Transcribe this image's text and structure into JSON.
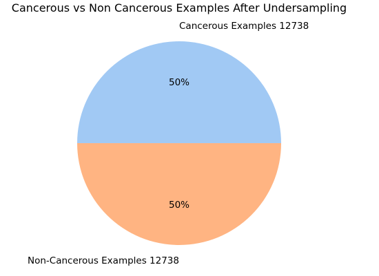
{
  "chart_data": {
    "type": "pie",
    "title": "Cancerous vs Non Cancerous Examples After Undersampling",
    "slices": [
      {
        "label": "Cancerous Examples 12738",
        "value": 12738,
        "percent_label": "50%",
        "color": "#a1c9f4"
      },
      {
        "label": "Non-Cancerous Examples 12738",
        "value": 12738,
        "percent_label": "50%",
        "color": "#ffb482"
      }
    ],
    "legend": "none"
  }
}
